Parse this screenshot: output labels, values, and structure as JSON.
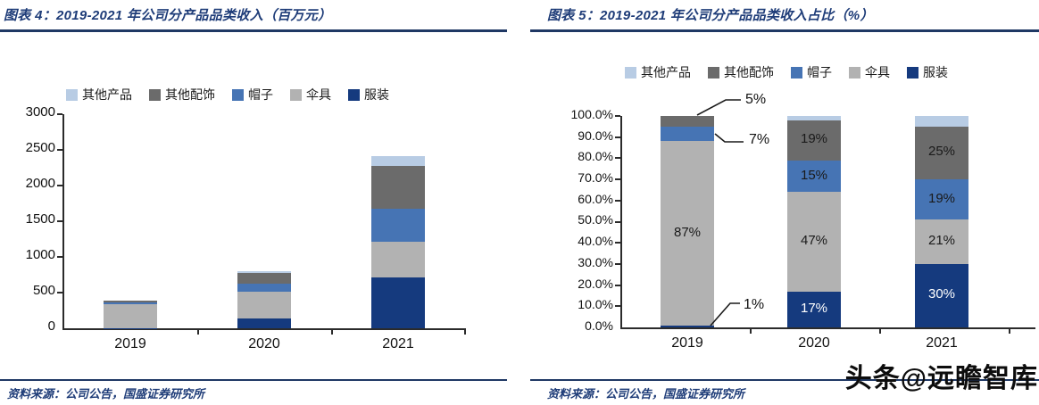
{
  "watermark": "头条@远瞻智库",
  "figure4": {
    "title": "图表 4：2019-2021 年公司分产品品类收入（百万元）",
    "source": "资料来源：公司公告，国盛证券研究所"
  },
  "figure5": {
    "title": "图表 5：2019-2021 年公司分产品品类收入占比（%）",
    "source": "资料来源：公司公告，国盛证券研究所"
  },
  "colors": {
    "title_navy": "#1e3c78",
    "rule_navy": "#1f3864",
    "apparel_navy": "#153a7e",
    "hat_blue": "#4674b4",
    "umbrella_gray": "#b2b2b2",
    "accessory_darkgray": "#6b6b6b",
    "other_lightblue": "#b8cce4"
  },
  "legend": {
    "items": [
      {
        "label": "其他产品",
        "color": "#b8cce4"
      },
      {
        "label": "其他配饰",
        "color": "#6b6b6b"
      },
      {
        "label": "帽子",
        "color": "#4674b4"
      },
      {
        "label": "伞具",
        "color": "#b2b2b2"
      },
      {
        "label": "服装",
        "color": "#153a7e"
      }
    ]
  },
  "chart_data": [
    {
      "type": "bar",
      "stacked": true,
      "title": "图表 4: 2019-2021 年公司分产品品类收入（百万元）",
      "categories": [
        "2019",
        "2020",
        "2021"
      ],
      "series": [
        {
          "name": "服装",
          "color": "#153a7e",
          "values": [
            4,
            139,
            710
          ]
        },
        {
          "name": "伞具",
          "color": "#b2b2b2",
          "values": [
            335,
            373,
            501
          ]
        },
        {
          "name": "帽子",
          "color": "#4674b4",
          "values": [
            27,
            119,
            462
          ]
        },
        {
          "name": "其他配饰",
          "color": "#6b6b6b",
          "values": [
            19,
            151,
            601
          ]
        },
        {
          "name": "其他产品",
          "color": "#b8cce4",
          "values": [
            0,
            12,
            133
          ]
        }
      ],
      "ylabel": "百万元",
      "ylim": [
        0,
        3000
      ],
      "yticks": [
        "0",
        "500",
        "1000",
        "1500",
        "2000",
        "2500",
        "3000"
      ],
      "legend_position": "top",
      "grid": false
    },
    {
      "type": "bar",
      "stacked": true,
      "unit": "%",
      "title": "图表 5: 2019-2021 年公司分产品品类收入占比（%）",
      "categories": [
        "2019",
        "2020",
        "2021"
      ],
      "series": [
        {
          "name": "服装",
          "color": "#153a7e",
          "values": [
            1,
            17,
            30
          ],
          "labels": [
            "1%",
            "17%",
            "30%"
          ]
        },
        {
          "name": "伞具",
          "color": "#b2b2b2",
          "values": [
            87,
            47,
            21
          ],
          "labels": [
            "87%",
            "47%",
            "21%"
          ]
        },
        {
          "name": "帽子",
          "color": "#4674b4",
          "values": [
            7,
            15,
            19
          ],
          "labels": [
            "7%",
            "15%",
            "19%"
          ]
        },
        {
          "name": "其他配饰",
          "color": "#6b6b6b",
          "values": [
            5,
            19,
            25
          ],
          "labels": [
            "5%",
            "19%",
            "25%"
          ]
        },
        {
          "name": "其他产品",
          "color": "#b8cce4",
          "values": [
            0,
            2,
            5
          ],
          "labels": [
            "",
            "",
            ""
          ]
        }
      ],
      "ylim": [
        0,
        100
      ],
      "yticks": [
        "0.0%",
        "10.0%",
        "20.0%",
        "30.0%",
        "40.0%",
        "50.0%",
        "60.0%",
        "70.0%",
        "80.0%",
        "90.0%",
        "100.0%"
      ],
      "legend_position": "top",
      "grid": false,
      "callouts": [
        {
          "text": "5%",
          "series": "其他配饰",
          "category": "2019"
        },
        {
          "text": "7%",
          "series": "帽子",
          "category": "2019"
        },
        {
          "text": "1%",
          "series": "服装",
          "category": "2019"
        }
      ]
    }
  ]
}
